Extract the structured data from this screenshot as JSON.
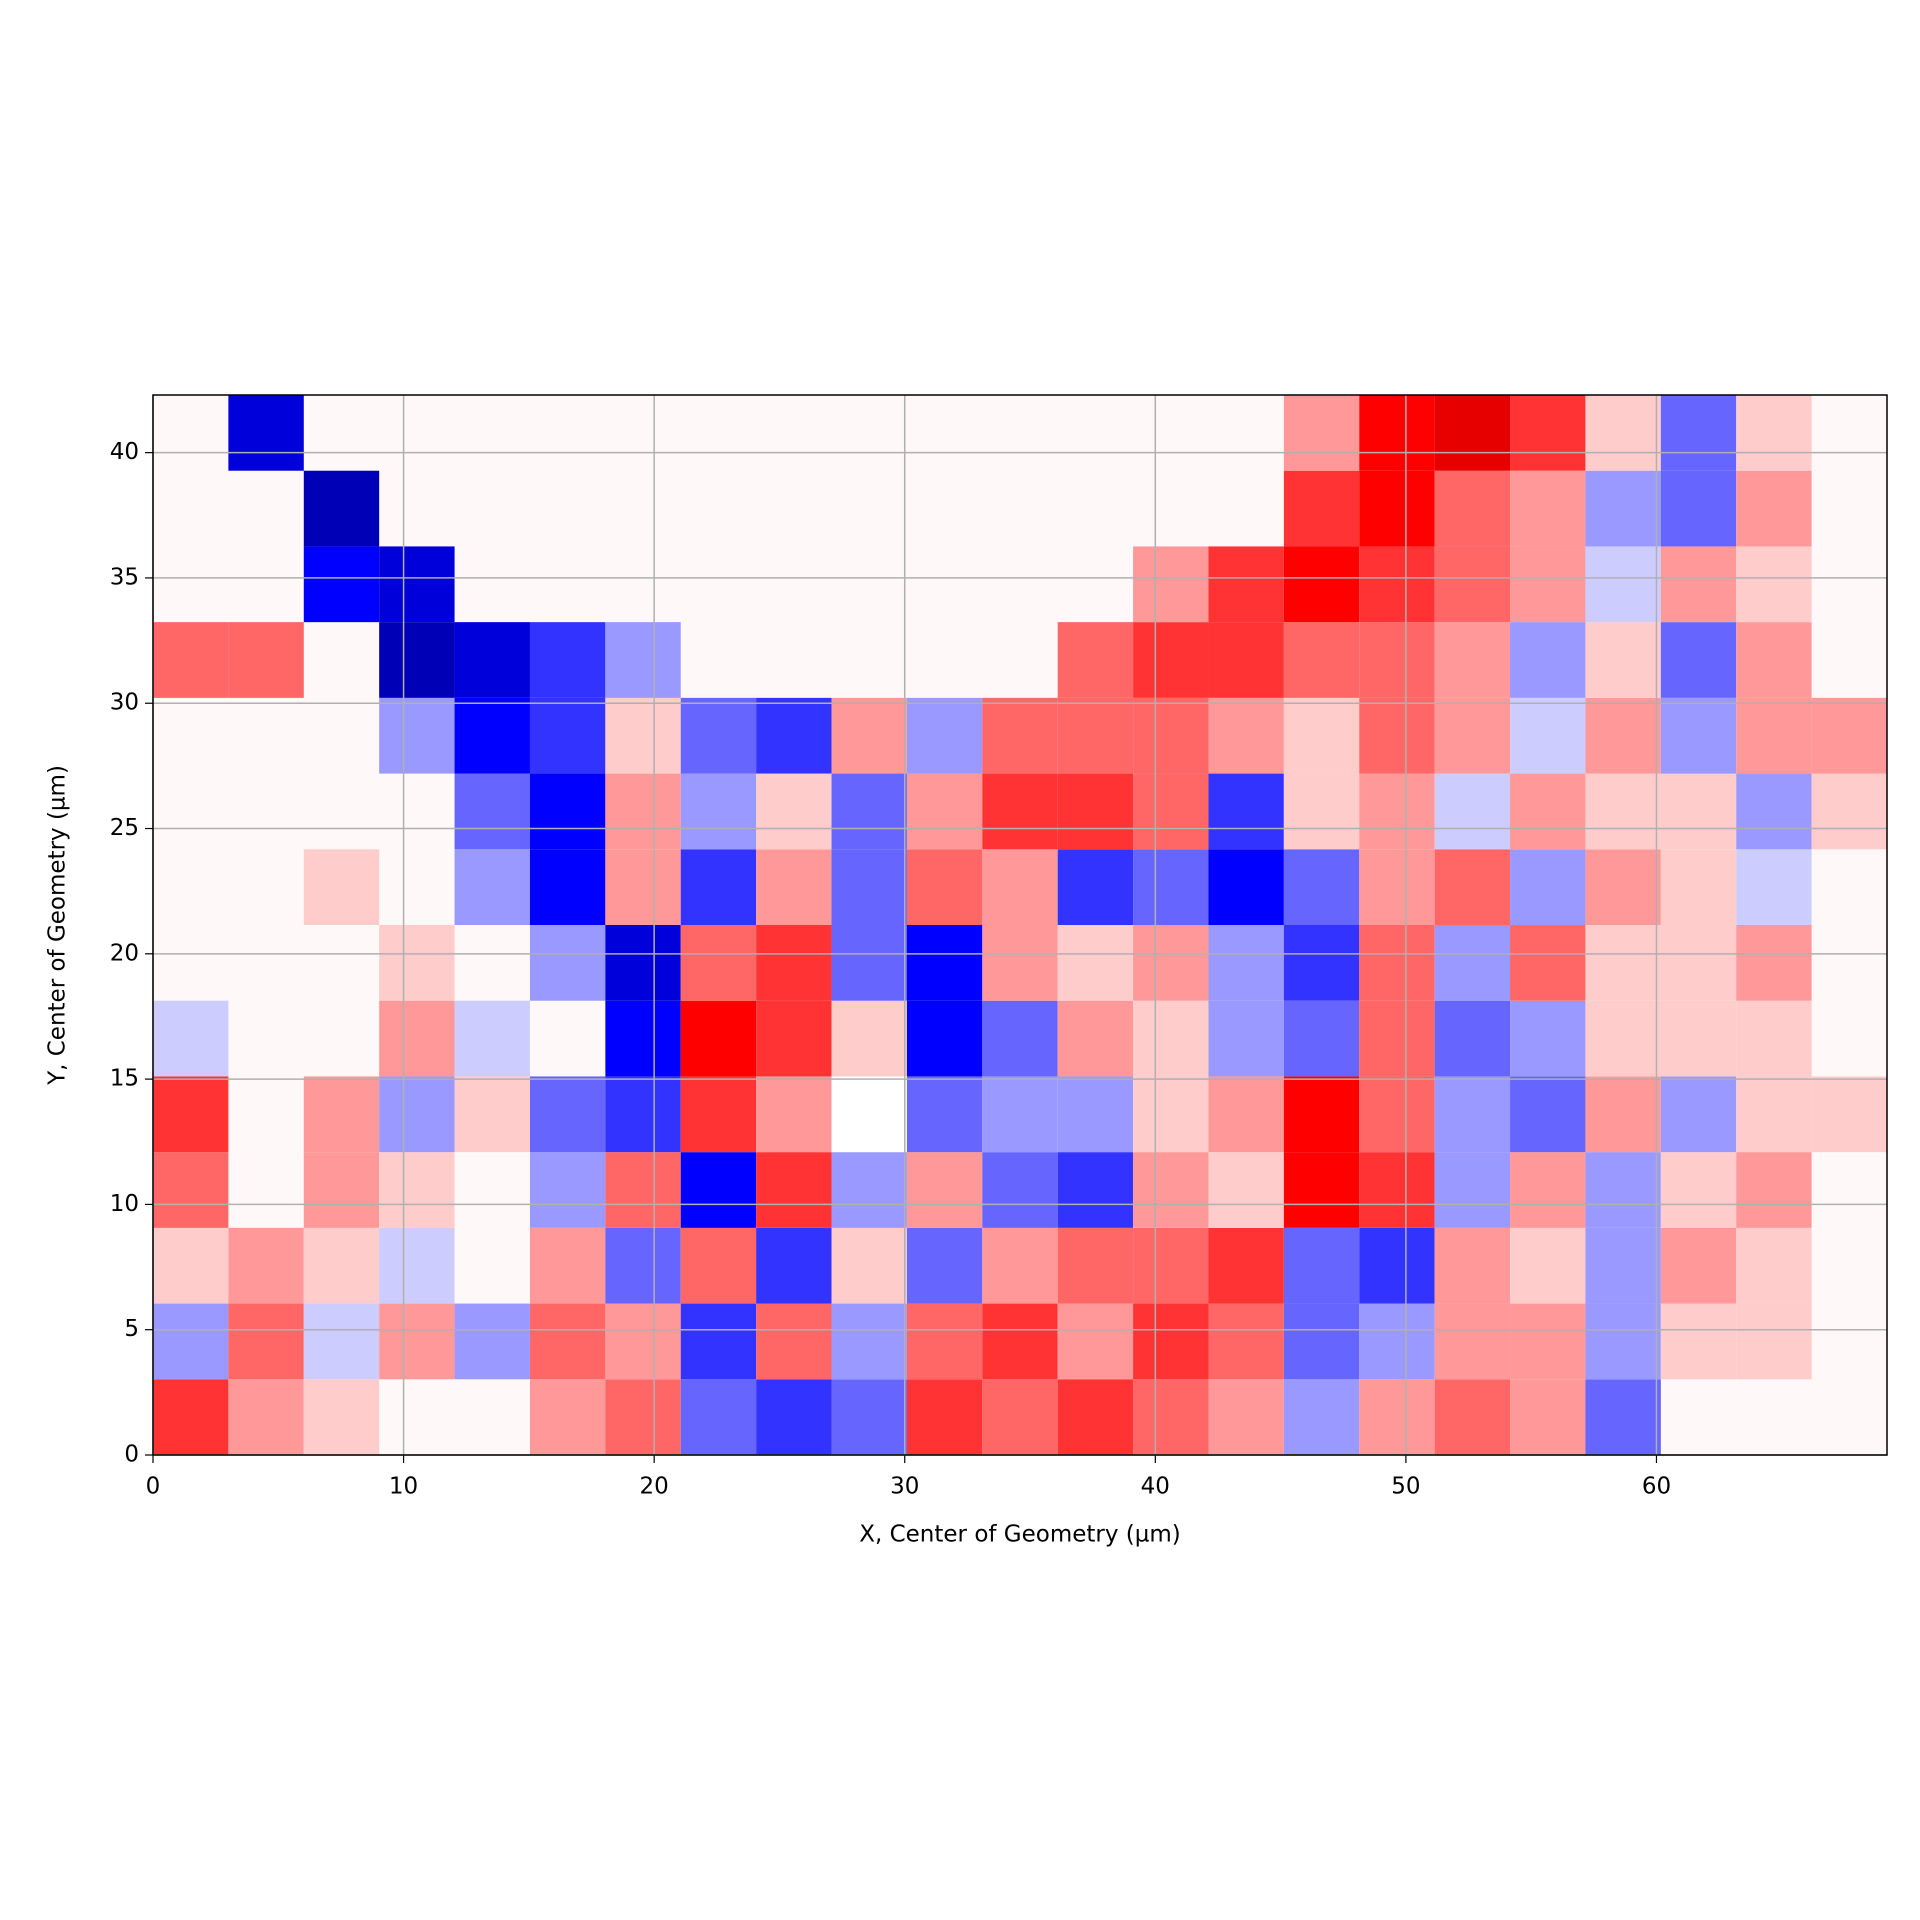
{
  "chart_data": {
    "type": "heatmap",
    "xlabel": "X, Center of Geometry (µm)",
    "ylabel": "Y, Center of Geometry (µm)",
    "xlim": [
      0,
      69.2
    ],
    "ylim": [
      0,
      42.3
    ],
    "xticks": [
      0,
      10,
      20,
      30,
      40,
      50,
      60
    ],
    "yticks": [
      0,
      5,
      10,
      15,
      20,
      25,
      30,
      35,
      40
    ],
    "grid": true,
    "zlim": [
      -1,
      1
    ],
    "colormap": [
      "#00004c",
      "#0000ff",
      "#ffffff",
      "#ff0000",
      "#800000"
    ],
    "z": [
      [
        0.4,
        0.2,
        0.1,
        null,
        null,
        0.2,
        0.3,
        -0.3,
        -0.4,
        -0.3,
        0.4,
        0.3,
        0.4,
        0.3,
        0.2,
        -0.2,
        0.2,
        0.3,
        0.2,
        -0.3,
        null,
        null,
        null
      ],
      [
        -0.2,
        0.3,
        -0.1,
        0.2,
        -0.2,
        0.3,
        0.2,
        -0.4,
        0.3,
        -0.2,
        0.3,
        0.4,
        0.2,
        0.4,
        0.3,
        -0.3,
        -0.2,
        0.2,
        0.2,
        -0.2,
        0.1,
        0.1,
        null
      ],
      [
        0.1,
        0.2,
        0.1,
        -0.1,
        null,
        0.2,
        -0.3,
        0.3,
        -0.4,
        0.1,
        -0.3,
        0.2,
        0.3,
        0.3,
        0.4,
        -0.3,
        -0.4,
        0.2,
        0.1,
        -0.2,
        0.2,
        0.1,
        null
      ],
      [
        0.3,
        null,
        0.2,
        0.1,
        null,
        -0.2,
        0.3,
        -0.5,
        0.4,
        -0.2,
        0.2,
        -0.3,
        -0.4,
        0.2,
        0.1,
        0.5,
        0.4,
        -0.2,
        0.2,
        -0.2,
        0.1,
        0.2,
        null
      ],
      [
        0.4,
        null,
        0.2,
        -0.2,
        0.1,
        -0.3,
        -0.4,
        0.4,
        0.2,
        0.0,
        -0.3,
        -0.2,
        -0.2,
        0.1,
        0.2,
        0.5,
        0.3,
        -0.2,
        -0.3,
        0.2,
        -0.2,
        0.1,
        0.1
      ],
      [
        -0.1,
        null,
        null,
        0.2,
        -0.1,
        null,
        -0.5,
        0.5,
        0.4,
        0.1,
        -0.5,
        -0.3,
        0.2,
        0.1,
        -0.2,
        -0.3,
        0.3,
        -0.3,
        -0.2,
        0.1,
        0.1,
        0.1,
        null
      ],
      [
        null,
        null,
        null,
        0.1,
        null,
        -0.2,
        -0.6,
        0.3,
        0.4,
        -0.3,
        -0.5,
        0.2,
        0.1,
        0.2,
        -0.2,
        -0.4,
        0.3,
        -0.2,
        0.3,
        0.1,
        0.1,
        0.2,
        null
      ],
      [
        null,
        null,
        0.1,
        null,
        -0.2,
        -0.5,
        0.2,
        -0.4,
        0.2,
        -0.3,
        0.3,
        0.2,
        -0.4,
        -0.3,
        -0.5,
        -0.3,
        0.2,
        0.3,
        -0.2,
        0.2,
        0.1,
        -0.1,
        null
      ],
      [
        null,
        null,
        null,
        null,
        -0.3,
        -0.5,
        0.2,
        -0.2,
        0.1,
        -0.3,
        0.2,
        0.4,
        0.4,
        0.3,
        -0.4,
        0.1,
        0.2,
        -0.1,
        0.2,
        0.1,
        0.1,
        -0.2,
        0.1
      ],
      [
        null,
        null,
        null,
        -0.2,
        -0.5,
        -0.4,
        0.1,
        -0.3,
        -0.4,
        0.2,
        -0.2,
        0.3,
        0.3,
        0.3,
        0.2,
        0.1,
        0.3,
        0.2,
        -0.1,
        0.2,
        -0.2,
        0.2,
        0.2
      ],
      [
        0.3,
        0.3,
        null,
        -0.7,
        -0.6,
        -0.4,
        -0.2,
        null,
        null,
        null,
        null,
        null,
        0.3,
        0.4,
        0.4,
        0.3,
        0.3,
        0.2,
        -0.2,
        0.1,
        -0.3,
        0.2,
        null
      ],
      [
        null,
        null,
        -0.5,
        -0.6,
        null,
        null,
        null,
        null,
        null,
        null,
        null,
        null,
        null,
        0.2,
        0.4,
        0.5,
        0.4,
        0.3,
        0.2,
        -0.1,
        0.2,
        0.1,
        null
      ],
      [
        null,
        null,
        -0.7,
        null,
        null,
        null,
        null,
        null,
        null,
        null,
        null,
        null,
        null,
        null,
        null,
        0.4,
        0.5,
        0.3,
        0.2,
        -0.2,
        -0.3,
        0.2,
        null
      ],
      [
        null,
        -0.6,
        null,
        null,
        null,
        null,
        null,
        null,
        null,
        null,
        null,
        null,
        null,
        null,
        null,
        0.2,
        0.5,
        0.6,
        0.4,
        0.1,
        -0.3,
        0.1,
        null
      ]
    ]
  }
}
